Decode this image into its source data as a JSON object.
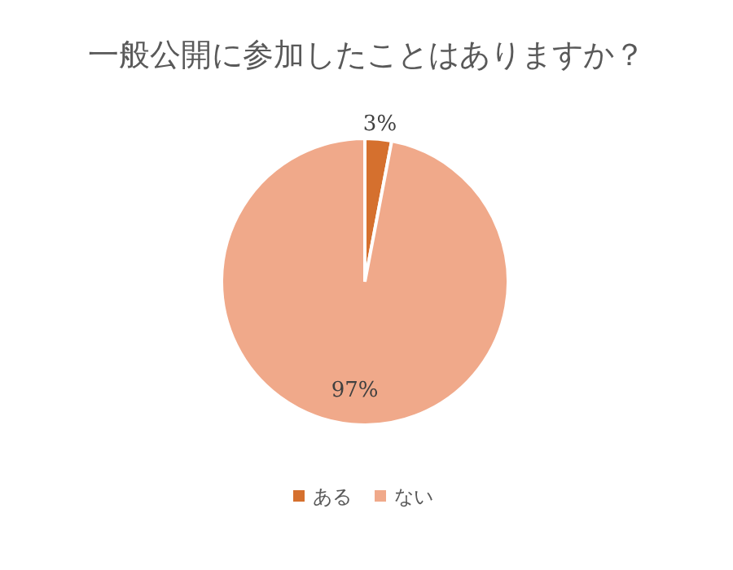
{
  "chart_data": {
    "type": "pie",
    "title": "一般公開に参加したことはありますか？",
    "categories": [
      "ある",
      "ない"
    ],
    "values": [
      3,
      97
    ],
    "colors": [
      "#d5702e",
      "#f0a98a"
    ],
    "value_labels": [
      "3%",
      "97%"
    ],
    "legend": "bottom"
  }
}
